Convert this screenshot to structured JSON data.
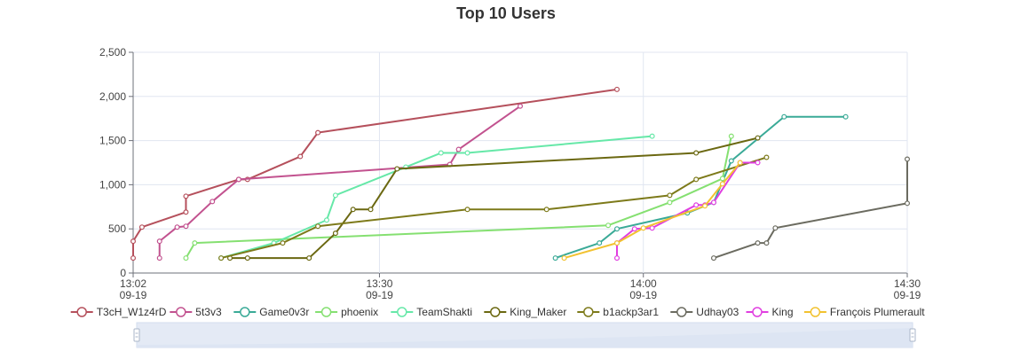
{
  "chart_data": {
    "type": "line",
    "title": "Top 10 Users",
    "xlabel": "",
    "ylabel": "",
    "x_axis": {
      "type": "time",
      "date_label": "09-19",
      "start": "13:02",
      "end": "14:30",
      "tick_labels": [
        "13:02",
        "13:30",
        "14:00",
        "14:30"
      ]
    },
    "ylim": [
      0,
      2500
    ],
    "y_ticks": [
      "0",
      "500",
      "1,000",
      "1,500",
      "2,000",
      "2,500"
    ],
    "grid": true,
    "legend_position": "bottom",
    "data_zoom_slider": true,
    "series": [
      {
        "name": "T3cH_W1z4rD",
        "color": "#b5505c",
        "points": [
          [
            "13:02",
            170
          ],
          [
            "13:02",
            360
          ],
          [
            "13:03",
            520
          ],
          [
            "13:08",
            690
          ],
          [
            "13:08",
            870
          ],
          [
            "13:14",
            1060
          ],
          [
            "13:15",
            1060
          ],
          [
            "13:21",
            1320
          ],
          [
            "13:23",
            1590
          ],
          [
            "13:57",
            2080
          ]
        ]
      },
      {
        "name": "5t3v3",
        "color": "#c2528f",
        "points": [
          [
            "13:05",
            170
          ],
          [
            "13:05",
            360
          ],
          [
            "13:07",
            520
          ],
          [
            "13:08",
            530
          ],
          [
            "13:11",
            810
          ],
          [
            "13:14",
            1060
          ],
          [
            "13:38",
            1230
          ],
          [
            "13:39",
            1400
          ],
          [
            "13:46",
            1890
          ]
        ]
      },
      {
        "name": "Game0v3r",
        "color": "#3aaa97",
        "points": [
          [
            "13:50",
            170
          ],
          [
            "13:55",
            340
          ],
          [
            "13:57",
            500
          ],
          [
            "14:05",
            680
          ],
          [
            "14:08",
            800
          ],
          [
            "14:10",
            1270
          ],
          [
            "14:16",
            1770
          ],
          [
            "14:23",
            1770
          ]
        ]
      },
      {
        "name": "phoenix",
        "color": "#85e071",
        "points": [
          [
            "13:08",
            170
          ],
          [
            "13:09",
            340
          ],
          [
            "13:56",
            540
          ],
          [
            "14:03",
            800
          ],
          [
            "14:09",
            1070
          ],
          [
            "14:10",
            1550
          ]
        ]
      },
      {
        "name": "TeamShakti",
        "color": "#66e8a8",
        "points": [
          [
            "13:12",
            170
          ],
          [
            "13:18",
            340
          ],
          [
            "13:24",
            600
          ],
          [
            "13:25",
            880
          ],
          [
            "13:33",
            1200
          ],
          [
            "13:37",
            1360
          ],
          [
            "13:40",
            1360
          ],
          [
            "14:01",
            1550
          ]
        ]
      },
      {
        "name": "King_Maker",
        "color": "#6b6811",
        "points": [
          [
            "13:13",
            170
          ],
          [
            "13:15",
            170
          ],
          [
            "13:22",
            170
          ],
          [
            "13:25",
            450
          ],
          [
            "13:27",
            720
          ],
          [
            "13:29",
            720
          ],
          [
            "13:32",
            1180
          ],
          [
            "14:06",
            1360
          ],
          [
            "14:13",
            1530
          ]
        ]
      },
      {
        "name": "b1ackp3ar1",
        "color": "#7d7a1a",
        "points": [
          [
            "13:12",
            170
          ],
          [
            "13:19",
            340
          ],
          [
            "13:23",
            530
          ],
          [
            "13:40",
            720
          ],
          [
            "13:49",
            720
          ],
          [
            "14:03",
            880
          ],
          [
            "14:06",
            1060
          ],
          [
            "14:14",
            1310
          ]
        ]
      },
      {
        "name": "Udhay03",
        "color": "#6b6b60",
        "points": [
          [
            "14:08",
            170
          ],
          [
            "14:13",
            340
          ],
          [
            "14:14",
            340
          ],
          [
            "14:15",
            510
          ],
          [
            "14:30",
            790
          ],
          [
            "14:30",
            1290
          ]
        ]
      },
      {
        "name": "King",
        "color": "#e03ee0",
        "points": [
          [
            "13:57",
            170
          ],
          [
            "13:57",
            340
          ],
          [
            "13:59",
            500
          ],
          [
            "14:01",
            510
          ],
          [
            "14:06",
            770
          ],
          [
            "14:07",
            770
          ],
          [
            "14:08",
            800
          ],
          [
            "14:11",
            1250
          ],
          [
            "14:13",
            1250
          ]
        ]
      },
      {
        "name": "François Plumerault",
        "color": "#f2c230",
        "points": [
          [
            "13:51",
            170
          ],
          [
            "13:57",
            340
          ],
          [
            "14:00",
            510
          ],
          [
            "14:07",
            760
          ],
          [
            "14:09",
            1010
          ],
          [
            "14:11",
            1250
          ]
        ]
      }
    ]
  }
}
